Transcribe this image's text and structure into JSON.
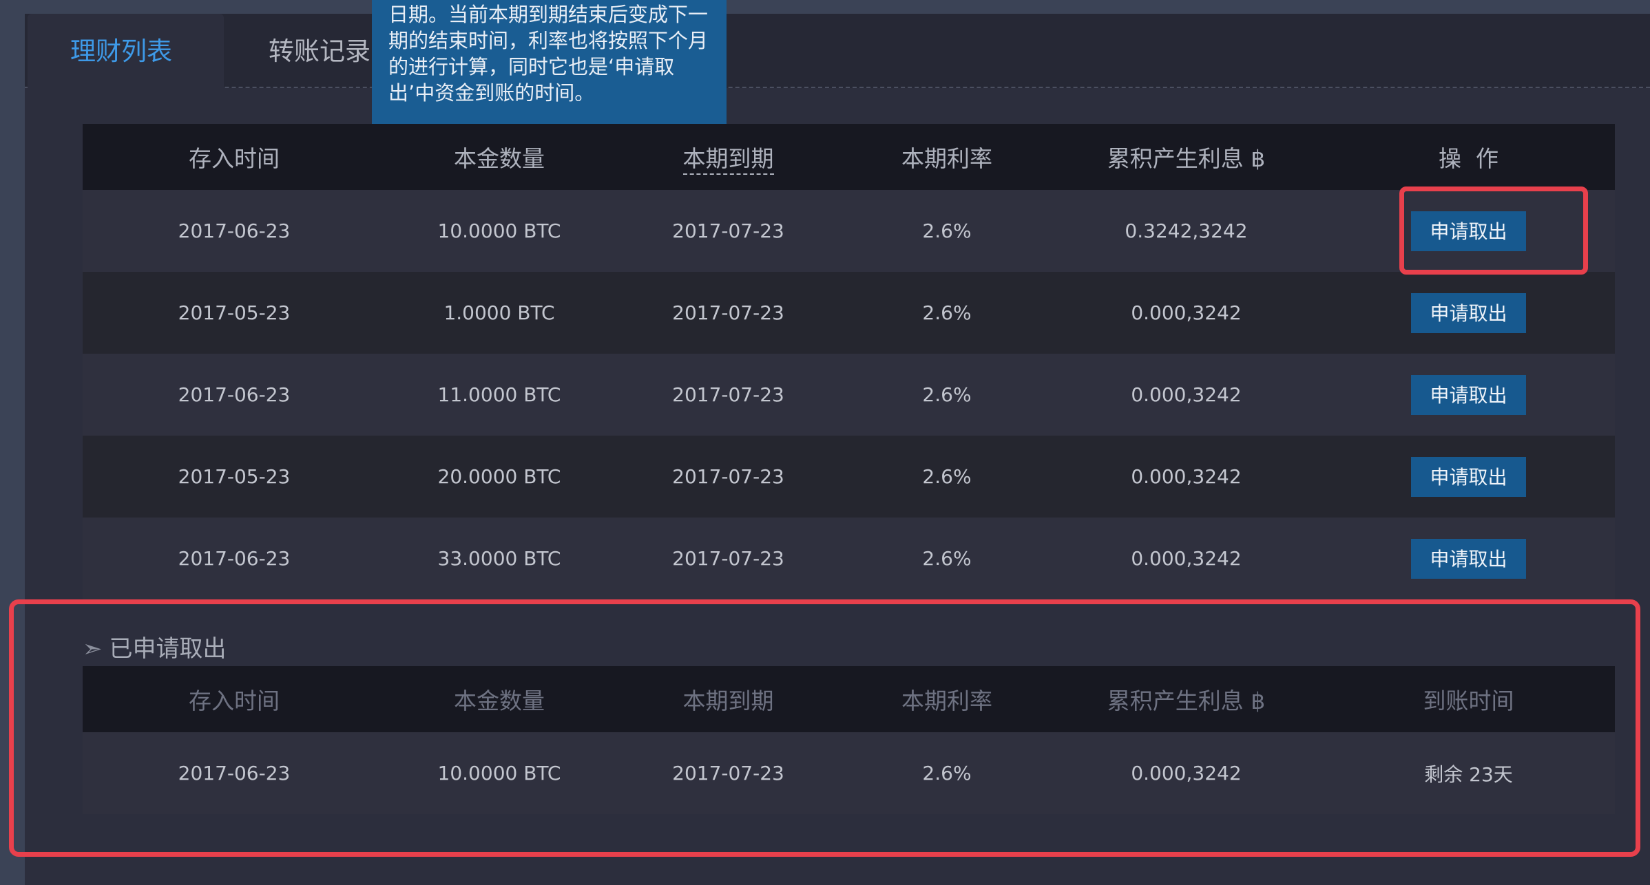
{
  "tabs": [
    {
      "label": "理财列表",
      "active": true
    },
    {
      "label": "转账记录",
      "active": false
    }
  ],
  "tooltip": {
    "text": "日期。当前本期到期结束后变成下一期的结束时间，利率也将按照下个月的进行计算，同时它也是‘申请取出’中资金到账的时间。"
  },
  "main_table": {
    "headers": [
      "存入时间",
      "本金数量",
      "本期到期",
      "本期利率",
      "累积产生利息 ฿",
      "操  作"
    ],
    "rows": [
      {
        "deposit_date": "2017-06-23",
        "amount": "10.0000 BTC",
        "due": "2017-07-23",
        "rate": "2.6%",
        "interest": "0.3242,3242",
        "action": "申请取出"
      },
      {
        "deposit_date": "2017-05-23",
        "amount": "1.0000 BTC",
        "due": "2017-07-23",
        "rate": "2.6%",
        "interest": "0.000,3242",
        "action": "申请取出"
      },
      {
        "deposit_date": "2017-06-23",
        "amount": "11.0000 BTC",
        "due": "2017-07-23",
        "rate": "2.6%",
        "interest": "0.000,3242",
        "action": "申请取出"
      },
      {
        "deposit_date": "2017-05-23",
        "amount": "20.0000 BTC",
        "due": "2017-07-23",
        "rate": "2.6%",
        "interest": "0.000,3242",
        "action": "申请取出"
      },
      {
        "deposit_date": "2017-06-23",
        "amount": "33.0000 BTC",
        "due": "2017-07-23",
        "rate": "2.6%",
        "interest": "0.000,3242",
        "action": "申请取出"
      }
    ]
  },
  "withdrawn_section": {
    "arrow": "➣",
    "title": "已申请取出",
    "headers": [
      "存入时间",
      "本金数量",
      "本期到期",
      "本期利率",
      "累积产生利息 ฿",
      "到账时间"
    ],
    "rows": [
      {
        "deposit_date": "2017-06-23",
        "amount": "10.0000 BTC",
        "due": "2017-07-23",
        "rate": "2.6%",
        "interest": "0.000,3242",
        "arrival": "剩余 23天"
      }
    ]
  },
  "colors": {
    "accent": "#3e9ae8",
    "button": "#17598f",
    "tooltip": "#1a5d93",
    "highlight": "#e8404c"
  }
}
